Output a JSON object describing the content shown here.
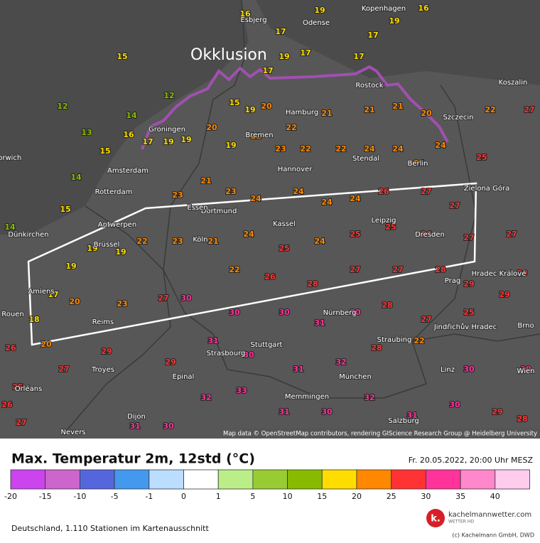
{
  "map": {
    "annotation": "Okklusion",
    "attribution": "Map data © OpenStreetMap contributors, rendering GIScience Research Group @ Heidelberg University",
    "cities": [
      "Kopenhagen",
      "Esbjerg",
      "Odense",
      "Hamburg",
      "Bremen",
      "Groningen",
      "Amsterdam",
      "Rotterdam",
      "Antwerpen",
      "Brüssel",
      "Dünkirchen",
      "Amiens",
      "Rouen",
      "Reims",
      "Troyes",
      "Orléans",
      "Nevers",
      "Dijon",
      "Epinal",
      "Strasbourg",
      "Stuttgart",
      "München",
      "Salzburg",
      "Linz",
      "Nürnberg",
      "Prag",
      "Dresden",
      "Leipzig",
      "Kassel",
      "Dortmund",
      "Essen",
      "Köln",
      "Hannover",
      "Stendal",
      "Berlin",
      "Szczecin",
      "Koszalin",
      "Zielona Góra",
      "Hradec Králové",
      "Jindřichův Hradec",
      "Brno",
      "Wien",
      "Straubing",
      "Memmingen",
      "Rostock",
      "Norwich"
    ],
    "station_values": [
      15,
      12,
      12,
      14,
      13,
      15,
      14,
      15,
      14,
      16,
      17,
      19,
      19,
      20,
      19,
      21,
      23,
      22,
      22,
      24,
      24,
      24,
      24,
      25,
      22,
      27,
      20,
      21,
      21,
      21,
      22,
      20,
      15,
      17,
      19,
      17,
      17,
      17,
      19,
      16,
      19,
      17,
      16,
      19,
      21,
      23,
      23,
      24,
      24,
      24,
      24,
      26,
      27,
      27,
      27,
      27,
      26,
      25,
      25,
      24,
      25,
      24,
      21,
      23,
      22,
      19,
      19,
      19,
      17,
      20,
      18,
      23,
      27,
      30,
      30,
      30,
      31,
      30,
      28,
      27,
      25,
      29,
      29,
      29,
      29,
      31,
      30,
      31,
      32,
      28,
      22,
      30,
      30,
      25,
      26,
      27,
      27,
      31,
      30,
      32,
      33,
      31,
      30,
      32,
      31,
      30,
      29,
      28,
      26,
      20,
      22,
      26,
      28,
      27,
      27,
      28,
      29
    ]
  },
  "legend": {
    "title": "Max. Temperatur 2m, 12std (°C)",
    "timestamp": "Fr. 20.05.2022, 20:00 Uhr MESZ",
    "ticks": [
      -20,
      -15,
      -10,
      -5,
      -1,
      0,
      1,
      5,
      10,
      15,
      20,
      25,
      30,
      35,
      40
    ],
    "colors": [
      "#cc44ee",
      "#cc66cc",
      "#5566dd",
      "#4499ee",
      "#bbddff",
      "#ffffff",
      "#bbee88",
      "#99cc33",
      "#88bb00",
      "#ffdd00",
      "#ff8800",
      "#ff3333",
      "#ff3399",
      "#ff88cc",
      "#ffccee"
    ]
  },
  "footer": {
    "stations_note": "Deutschland, 1.110 Stationen im Kartenausschnitt",
    "brand": "kachelmannwetter.com",
    "brand_sub": "WETTER HD",
    "copyright": "(c) Kachelmann GmbH, DWD"
  }
}
